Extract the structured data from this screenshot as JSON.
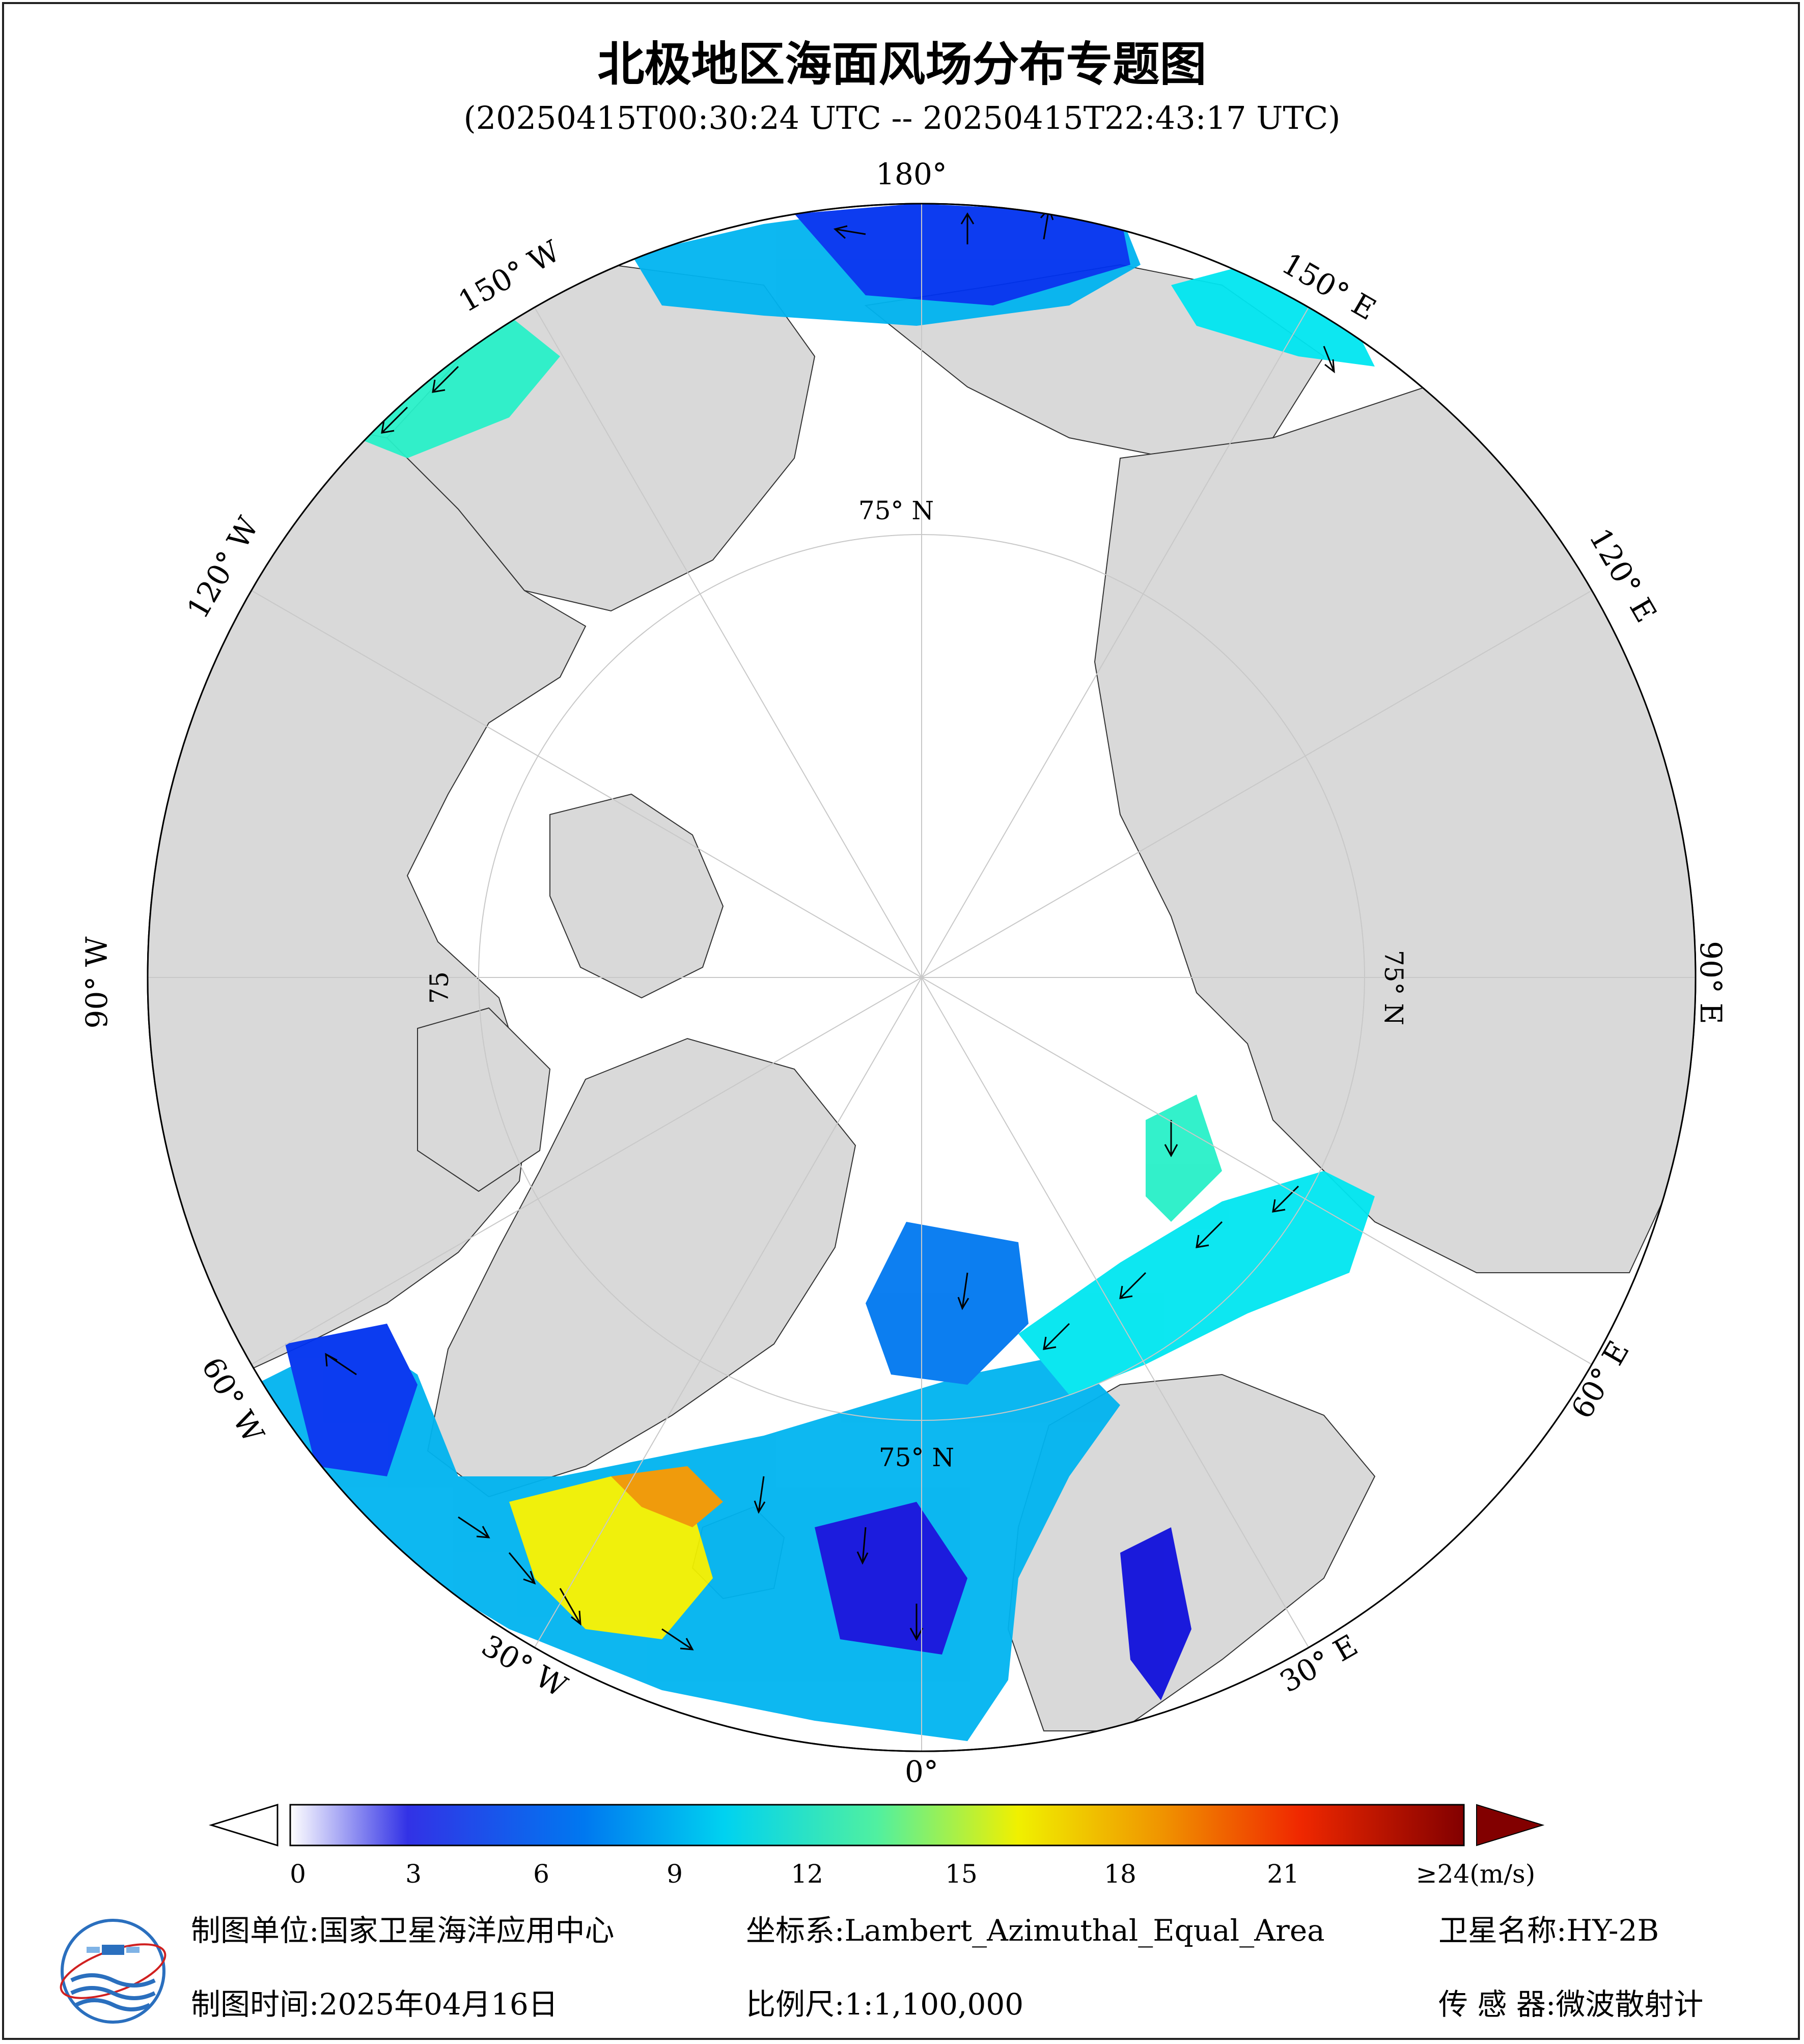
{
  "title": "北极地区海面风场分布专题图",
  "subtitle": "(20250415T00:30:24 UTC -- 20250415T22:43:17 UTC)",
  "longitude_labels": {
    "lon_180": "180°",
    "lon_150w": "150° W",
    "lon_120w": "120° W",
    "lon_90w": "90° W",
    "lon_60w": "60° W",
    "lon_30w": "30° W",
    "lon_0": "0°",
    "lon_30e": "30° E",
    "lon_60e": "60° E",
    "lon_90e": "90° E",
    "lon_120e": "120° E",
    "lon_150e": "150° E"
  },
  "latitude_labels": {
    "lat_top": "75° N",
    "lat_right": "75° N",
    "lat_left": "75",
    "lat_bottom": "75° N"
  },
  "colorbar": {
    "ticks": [
      "0",
      "3",
      "6",
      "9",
      "12",
      "15",
      "18",
      "21",
      "≥24(m/s)"
    ],
    "min": 0,
    "max": 24,
    "unit": "m/s",
    "colors": [
      "#ffffff",
      "#dcdcf8",
      "#a8a8f0",
      "#6e6ef0",
      "#3232e6",
      "#1010dc",
      "#0032f0",
      "#0078f0",
      "#00b4f0",
      "#00e6f0",
      "#28f0c8",
      "#78f08c",
      "#b4f050",
      "#f0f000",
      "#f0c800",
      "#f09600",
      "#f06400",
      "#f02800",
      "#dc0000",
      "#b40000",
      "#820000"
    ]
  },
  "footer": {
    "unit_label": "制图单位:",
    "unit_value": "国家卫星海洋应用中心",
    "crs_label": "坐标系:",
    "crs_value": "Lambert_Azimuthal_Equal_Area",
    "satellite_label": "卫星名称:",
    "satellite_value": "HY-2B",
    "date_label": "制图时间:",
    "date_value": "2025年04月16日",
    "scale_label": "比例尺:",
    "scale_value": "1:1,100,000",
    "sensor_label": "传 感 器:",
    "sensor_value": "微波散射计"
  },
  "colors": {
    "land": "#d9d9d9",
    "ocean": "#ffffff",
    "grid": "#c8c8c8",
    "arrow": "#000000"
  }
}
